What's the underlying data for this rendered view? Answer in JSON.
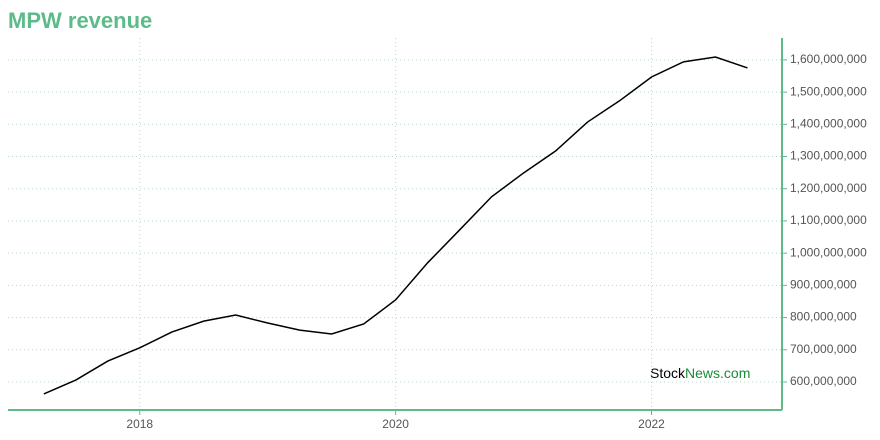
{
  "chart_data": {
    "type": "line",
    "title": "MPW revenue",
    "watermark": [
      "Stock",
      "News.com"
    ],
    "x": [
      2017.25,
      2017.5,
      2017.75,
      2018,
      2018.25,
      2018.5,
      2018.75,
      2019,
      2019.25,
      2019.5,
      2019.75,
      2020,
      2020.25,
      2020.5,
      2020.75,
      2021,
      2021.25,
      2021.5,
      2021.75,
      2022,
      2022.25,
      2022.5,
      2022.75
    ],
    "series": [
      {
        "name": "Revenue",
        "color": "#000000",
        "values": [
          563000000,
          606000000,
          665000000,
          706000000,
          755000000,
          789000000,
          808000000,
          783000000,
          761000000,
          749000000,
          780000000,
          855000000,
          970000000,
          1072000000,
          1175000000,
          1249000000,
          1317000000,
          1407000000,
          1473000000,
          1547000000,
          1594000000,
          1609000000,
          1575000000
        ]
      }
    ],
    "xlim": [
      2016.97,
      2023.02
    ],
    "xticks": [
      2018,
      2020,
      2022
    ],
    "ylim": [
      513000000,
      1668000000
    ],
    "yticks": [
      {
        "value": 600000000,
        "label": "600,000,000"
      },
      {
        "value": 700000000,
        "label": "700,000,000"
      },
      {
        "value": 800000000,
        "label": "800,000,000"
      },
      {
        "value": 900000000,
        "label": "900,000,000"
      },
      {
        "value": 1000000000,
        "label": "1,000,000,000"
      },
      {
        "value": 1100000000,
        "label": "1,100,000,000"
      },
      {
        "value": 1200000000,
        "label": "1,200,000,000"
      },
      {
        "value": 1300000000,
        "label": "1,300,000,000"
      },
      {
        "value": 1400000000,
        "label": "1,400,000,000"
      },
      {
        "value": 1500000000,
        "label": "1,500,000,000"
      },
      {
        "value": 1600000000,
        "label": "1,600,000,000"
      }
    ],
    "grid": true,
    "axis_color": "#5dbb8a"
  }
}
